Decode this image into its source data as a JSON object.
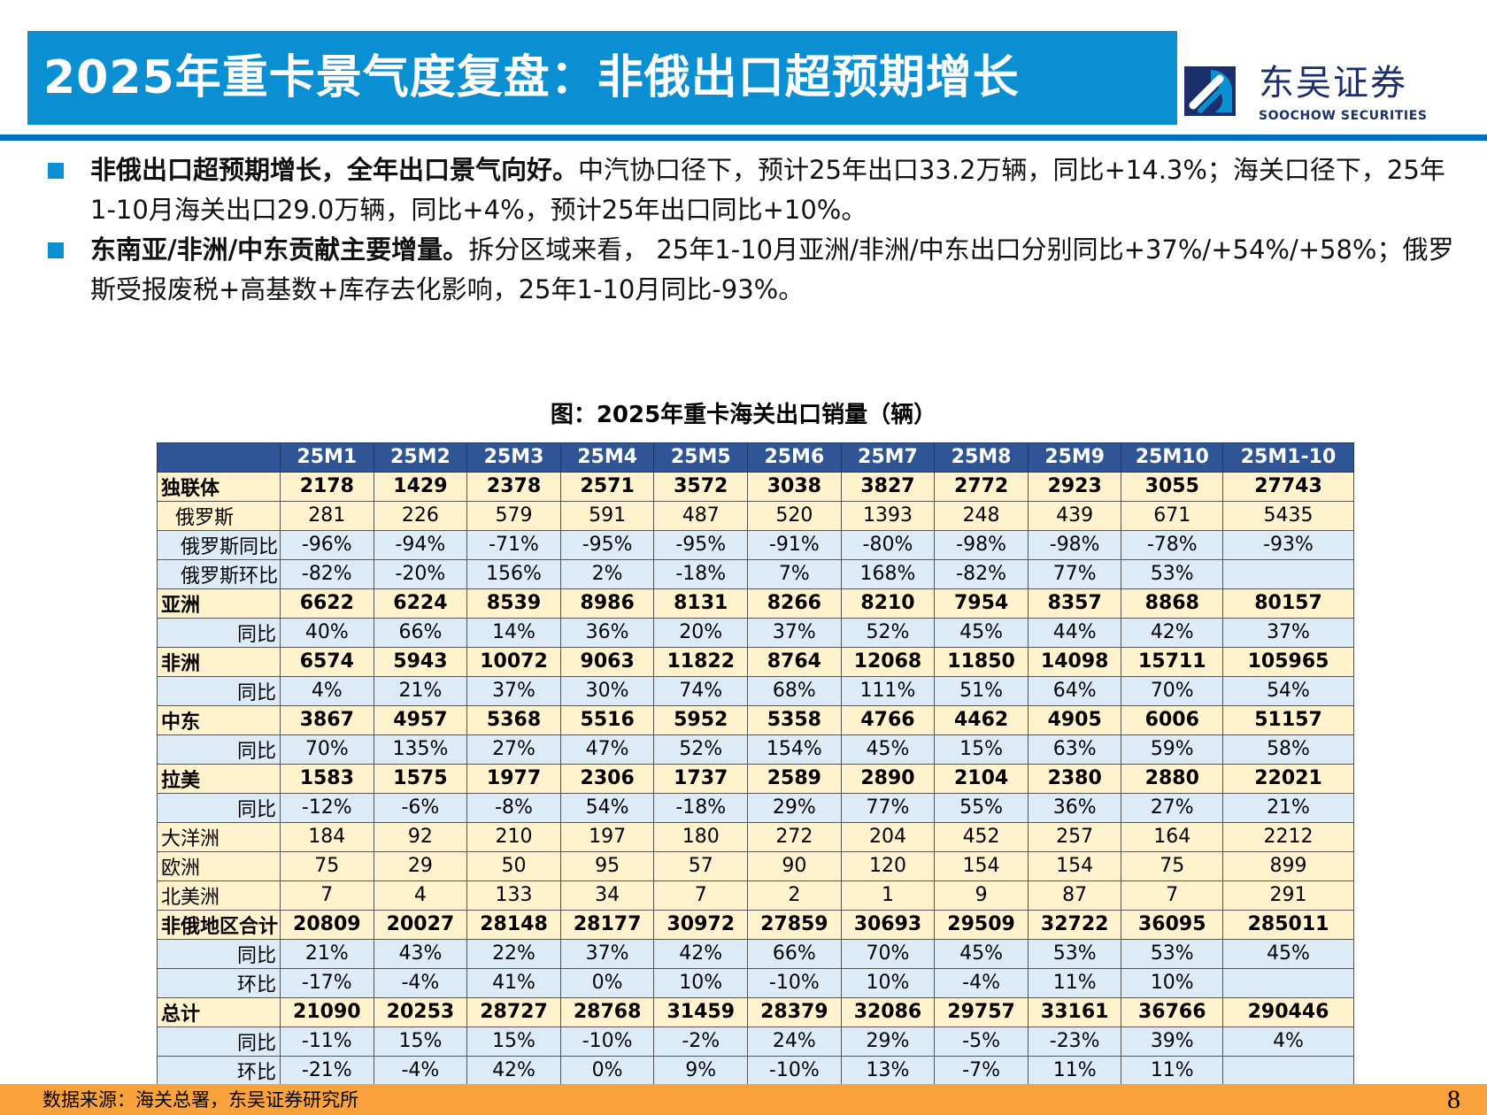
{
  "title": "2025年重卡景气度复盘：非俄出口超预期增长",
  "logo": {
    "cn": "东吴证券",
    "en": "SOOCHOW SECURITIES",
    "colors": {
      "navy": "#1a2f6b",
      "blue": "#0b8fd3"
    }
  },
  "bullets": [
    {
      "bold": "非俄出口超预期增长，全年出口景气向好。",
      "text": "中汽协口径下，预计25年出口33.2万辆，同比+14.3%；海关口径下，25年1-10月海关出口29.0万辆，同比+4%，预计25年出口同比+10%。"
    },
    {
      "bold": "东南亚/非洲/中东贡献主要增量。",
      "text": "拆分区域来看， 25年1-10月亚洲/非洲/中东出口分别同比+37%/+54%/+58%；俄罗斯受报废税+高基数+库存去化影响，25年1-10月同比-93%。"
    }
  ],
  "caption": "图：2025年重卡海关出口销量（辆）",
  "table": {
    "headers": [
      "",
      "25M1",
      "25M2",
      "25M3",
      "25M4",
      "25M5",
      "25M6",
      "25M7",
      "25M8",
      "25M9",
      "25M10",
      "25M1-10"
    ],
    "rows": [
      {
        "label": "独联体",
        "style": "bold",
        "values": [
          "2178",
          "1429",
          "2378",
          "2571",
          "3572",
          "3038",
          "3827",
          "2772",
          "2923",
          "3055",
          "27743"
        ]
      },
      {
        "label": "俄罗斯",
        "style": "ind1",
        "values": [
          "281",
          "226",
          "579",
          "591",
          "487",
          "520",
          "1393",
          "248",
          "439",
          "671",
          "5435"
        ]
      },
      {
        "label": "俄罗斯同比",
        "style": "ind2",
        "values": [
          "-96%",
          "-94%",
          "-71%",
          "-95%",
          "-95%",
          "-91%",
          "-80%",
          "-98%",
          "-98%",
          "-78%",
          "-93%"
        ]
      },
      {
        "label": "俄罗斯环比",
        "style": "ind2",
        "values": [
          "-82%",
          "-20%",
          "156%",
          "2%",
          "-18%",
          "7%",
          "168%",
          "-82%",
          "77%",
          "53%",
          ""
        ]
      },
      {
        "label": "亚洲",
        "style": "bold",
        "values": [
          "6622",
          "6224",
          "8539",
          "8986",
          "8131",
          "8266",
          "8210",
          "7954",
          "8357",
          "8868",
          "80157"
        ]
      },
      {
        "label": "同比",
        "style": "right",
        "values": [
          "40%",
          "66%",
          "14%",
          "36%",
          "20%",
          "37%",
          "52%",
          "45%",
          "44%",
          "42%",
          "37%"
        ]
      },
      {
        "label": "非洲",
        "style": "bold",
        "values": [
          "6574",
          "5943",
          "10072",
          "9063",
          "11822",
          "8764",
          "12068",
          "11850",
          "14098",
          "15711",
          "105965"
        ]
      },
      {
        "label": "同比",
        "style": "right",
        "values": [
          "4%",
          "21%",
          "37%",
          "30%",
          "74%",
          "68%",
          "111%",
          "51%",
          "64%",
          "70%",
          "54%"
        ]
      },
      {
        "label": "中东",
        "style": "bold",
        "values": [
          "3867",
          "4957",
          "5368",
          "5516",
          "5952",
          "5358",
          "4766",
          "4462",
          "4905",
          "6006",
          "51157"
        ]
      },
      {
        "label": "同比",
        "style": "right",
        "values": [
          "70%",
          "135%",
          "27%",
          "47%",
          "52%",
          "154%",
          "45%",
          "15%",
          "63%",
          "59%",
          "58%"
        ]
      },
      {
        "label": "拉美",
        "style": "bold",
        "values": [
          "1583",
          "1575",
          "1977",
          "2306",
          "1737",
          "2589",
          "2890",
          "2104",
          "2380",
          "2880",
          "22021"
        ]
      },
      {
        "label": "同比",
        "style": "right",
        "values": [
          "-12%",
          "-6%",
          "-8%",
          "54%",
          "-18%",
          "29%",
          "77%",
          "55%",
          "36%",
          "27%",
          "21%"
        ]
      },
      {
        "label": "大洋洲",
        "style": "plain",
        "values": [
          "184",
          "92",
          "210",
          "197",
          "180",
          "272",
          "204",
          "452",
          "257",
          "164",
          "2212"
        ]
      },
      {
        "label": "欧洲",
        "style": "plain",
        "values": [
          "75",
          "29",
          "50",
          "95",
          "57",
          "90",
          "120",
          "154",
          "154",
          "75",
          "899"
        ]
      },
      {
        "label": "北美洲",
        "style": "plain",
        "values": [
          "7",
          "4",
          "133",
          "34",
          "7",
          "2",
          "1",
          "9",
          "87",
          "7",
          "291"
        ]
      },
      {
        "label": "非俄地区合计",
        "style": "bold",
        "values": [
          "20809",
          "20027",
          "28148",
          "28177",
          "30972",
          "27859",
          "30693",
          "29509",
          "32722",
          "36095",
          "285011"
        ]
      },
      {
        "label": "同比",
        "style": "right",
        "values": [
          "21%",
          "43%",
          "22%",
          "37%",
          "42%",
          "66%",
          "70%",
          "45%",
          "53%",
          "53%",
          "45%"
        ]
      },
      {
        "label": "环比",
        "style": "right",
        "values": [
          "-17%",
          "-4%",
          "41%",
          "0%",
          "10%",
          "-10%",
          "10%",
          "-4%",
          "11%",
          "10%",
          ""
        ]
      },
      {
        "label": "总计",
        "style": "bold",
        "values": [
          "21090",
          "20253",
          "28727",
          "28768",
          "31459",
          "28379",
          "32086",
          "29757",
          "33161",
          "36766",
          "290446"
        ]
      },
      {
        "label": "同比",
        "style": "right",
        "values": [
          "-11%",
          "15%",
          "15%",
          "-10%",
          "-2%",
          "24%",
          "29%",
          "-5%",
          "-23%",
          "39%",
          "4%"
        ]
      },
      {
        "label": "环比",
        "style": "right",
        "values": [
          "-21%",
          "-4%",
          "42%",
          "0%",
          "9%",
          "-10%",
          "13%",
          "-7%",
          "11%",
          "11%",
          ""
        ]
      }
    ]
  },
  "footer": {
    "source": "数据来源：海关总署，东吴证券研究所",
    "page": "8"
  },
  "colors": {
    "title_bg": "#0b8fd3",
    "rule": "#0070c0",
    "header_bg": "#2f5597",
    "row_cream": "#fff2cc",
    "row_blue": "#ddebf7",
    "footer_bg": "#f9a23b"
  }
}
